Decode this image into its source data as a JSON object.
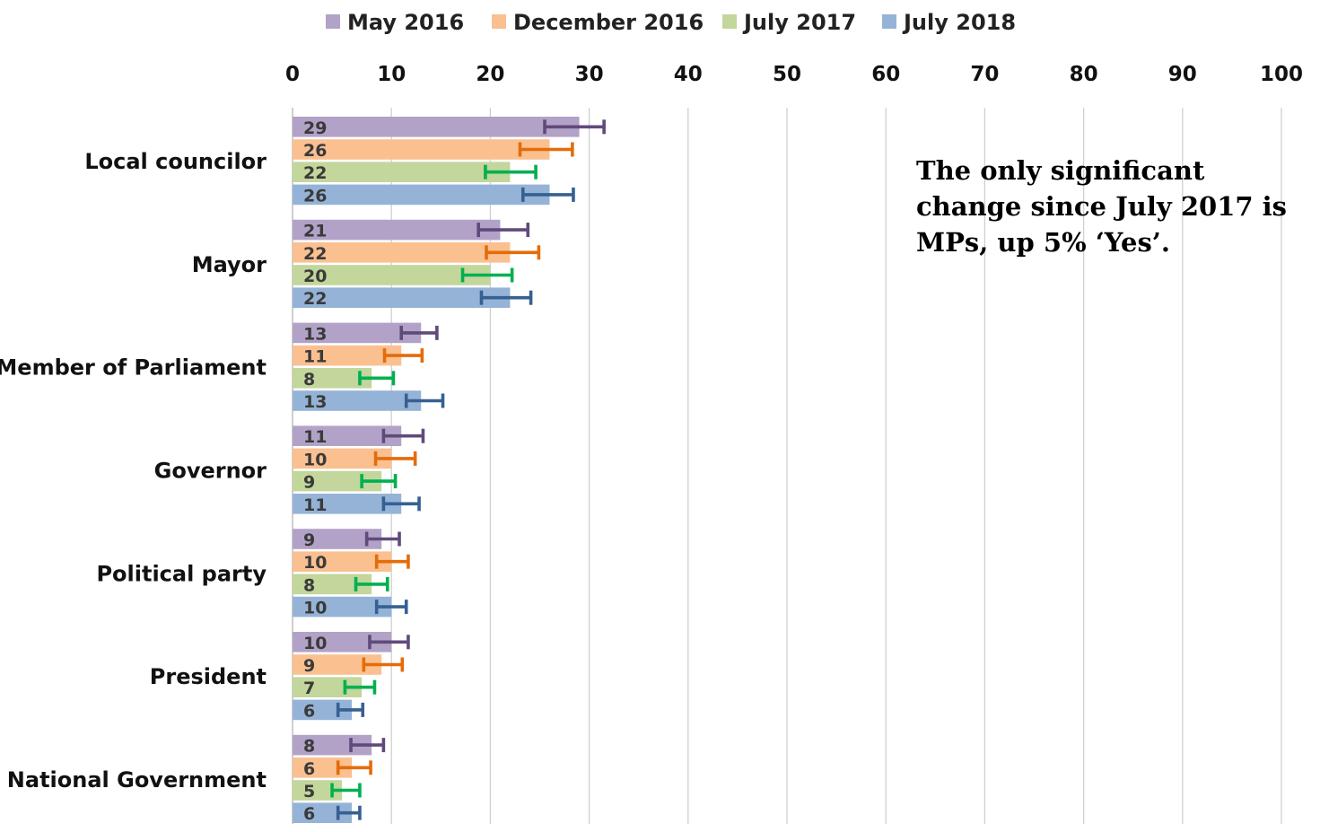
{
  "chart_data": {
    "type": "bar",
    "orientation": "horizontal",
    "categories": [
      "Local councilor",
      "Mayor",
      "Member of Parliament",
      "Governor",
      "Political party",
      "President",
      "National Government"
    ],
    "series": [
      {
        "name": "May 2016",
        "color": "#b3a2c7",
        "error_color": "#604a7b",
        "values": [
          29,
          21,
          13,
          11,
          9,
          10,
          8
        ],
        "error_low": [
          25.5,
          18.8,
          11,
          9.2,
          7.5,
          7.8,
          5.9
        ],
        "error_high": [
          31.5,
          23.8,
          14.6,
          13.2,
          10.8,
          11.7,
          9.2
        ]
      },
      {
        "name": "December 2016",
        "color": "#fac090",
        "error_color": "#e46c0a",
        "values": [
          26,
          22,
          11,
          10,
          10,
          9,
          6
        ],
        "error_low": [
          23,
          19.6,
          9.3,
          8.4,
          8.5,
          7.2,
          4.6
        ],
        "error_high": [
          28.3,
          24.9,
          13.1,
          12.4,
          11.7,
          11.1,
          7.9
        ]
      },
      {
        "name": "July 2017",
        "color": "#c3d69b",
        "error_color": "#00b050",
        "values": [
          22,
          20,
          8,
          9,
          8,
          7,
          5
        ],
        "error_low": [
          19.5,
          17.2,
          6.8,
          7,
          6.4,
          5.3,
          4
        ],
        "error_high": [
          24.6,
          22.2,
          10.2,
          10.4,
          9.6,
          8.3,
          6.8
        ]
      },
      {
        "name": "July 2018",
        "color": "#95b3d7",
        "error_color": "#366092",
        "values": [
          26,
          22,
          13,
          11,
          10,
          6,
          6
        ],
        "error_low": [
          23.3,
          19.1,
          11.5,
          9.2,
          8.5,
          4.6,
          4.6
        ],
        "error_high": [
          28.4,
          24.1,
          15.2,
          12.8,
          11.5,
          7.1,
          6.8
        ]
      }
    ],
    "data_labels": [
      [
        "29",
        "21",
        "13",
        "11",
        "9",
        "10",
        "8"
      ],
      [
        "26",
        "22",
        "11",
        "10",
        "10",
        "9",
        "6"
      ],
      [
        "22",
        "20",
        "8",
        "9",
        "8",
        "7",
        "5"
      ],
      [
        "26",
        "22",
        "13",
        "11",
        "10",
        "6",
        "6"
      ]
    ],
    "x_ticks": [
      "0",
      "10",
      "20",
      "30",
      "40",
      "50",
      "60",
      "70",
      "80",
      "90",
      "100"
    ],
    "xlim": [
      0,
      100
    ],
    "axis_position": "top",
    "grid": "vertical",
    "legend_position": "top",
    "error_bars": true,
    "annotation": "The only significant change since July 2017 is MPs, up 5% ‘Yes’."
  }
}
